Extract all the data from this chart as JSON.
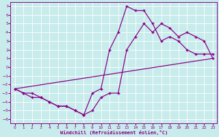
{
  "xlabel": "Windchill (Refroidissement éolien,°C)",
  "bg_color": "#c8ecec",
  "line_color": "#880088",
  "grid_color": "#aadddd",
  "xlim": [
    -0.5,
    23.5
  ],
  "ylim": [
    -6.5,
    7.5
  ],
  "xticks": [
    0,
    1,
    2,
    3,
    4,
    5,
    6,
    7,
    8,
    9,
    10,
    11,
    12,
    13,
    14,
    15,
    16,
    17,
    18,
    19,
    20,
    21,
    22,
    23
  ],
  "yticks": [
    -6,
    -5,
    -4,
    -3,
    -2,
    -1,
    0,
    1,
    2,
    3,
    4,
    5,
    6,
    7
  ],
  "line1_x": [
    0,
    1,
    2,
    3,
    4,
    5,
    6,
    7,
    8,
    9,
    10,
    11,
    12,
    13,
    14,
    15,
    16,
    17,
    18,
    19,
    20,
    21,
    22,
    23
  ],
  "line1_y": [
    -2.5,
    -3.0,
    -3.0,
    -3.5,
    -4.0,
    -4.5,
    -4.5,
    -5.0,
    -5.5,
    -3.0,
    -2.5,
    2.0,
    4.0,
    7.0,
    6.5,
    6.5,
    5.0,
    3.0,
    3.5,
    3.0,
    2.0,
    1.5,
    1.5,
    1.5
  ],
  "line2_x": [
    0,
    1,
    2,
    3,
    4,
    5,
    6,
    7,
    8,
    9,
    10,
    11,
    12,
    13,
    14,
    15,
    16,
    17,
    18,
    19,
    20,
    21,
    22,
    23
  ],
  "line2_y": [
    -2.5,
    -3.0,
    -3.5,
    -3.5,
    -4.0,
    -4.5,
    -4.5,
    -5.0,
    -5.5,
    -5.0,
    -3.5,
    -3.0,
    -3.0,
    2.0,
    3.5,
    5.0,
    4.0,
    5.0,
    4.5,
    3.5,
    4.0,
    3.5,
    3.0,
    1.0
  ],
  "line3_x": [
    0,
    23
  ],
  "line3_y": [
    -2.5,
    1.0
  ],
  "markersize": 2.5,
  "linewidth": 0.9
}
